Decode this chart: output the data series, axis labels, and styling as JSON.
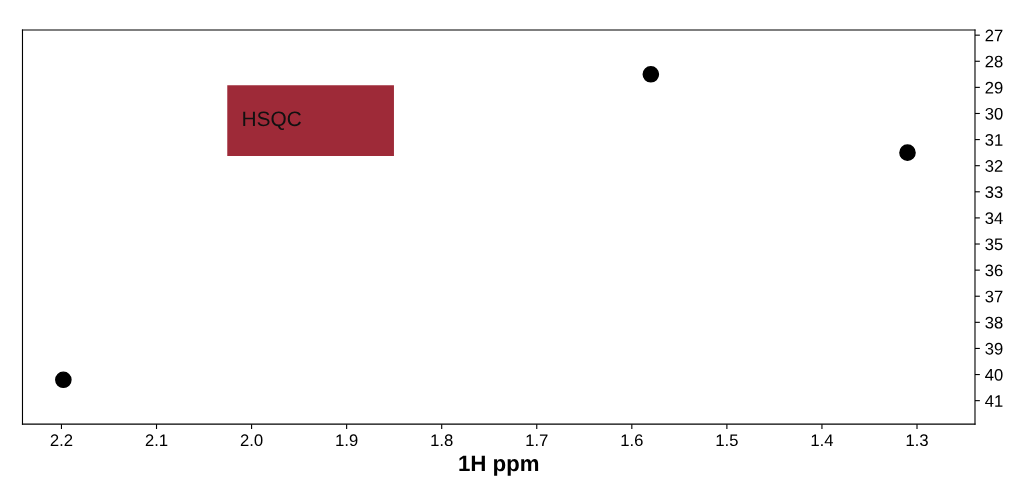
{
  "chart_data": {
    "type": "scatter",
    "xlabel": "1H ppm",
    "x": [
      2.198,
      1.58,
      1.31
    ],
    "values": [
      40.2,
      28.5,
      31.5
    ],
    "color": "#000000",
    "marker": "circle",
    "xlim": [
      2.241,
      1.239
    ],
    "xticks": [
      {
        "value": 2.2,
        "label": "2.2"
      },
      {
        "value": 2.1,
        "label": "2.1"
      },
      {
        "value": 2.0,
        "label": "2.0"
      },
      {
        "value": 1.9,
        "label": "1.9"
      },
      {
        "value": 1.8,
        "label": "1.8"
      },
      {
        "value": 1.7,
        "label": "1.7"
      },
      {
        "value": 1.6,
        "label": "1.6"
      },
      {
        "value": 1.5,
        "label": "1.5"
      },
      {
        "value": 1.4,
        "label": "1.4"
      },
      {
        "value": 1.3,
        "label": "1.3"
      }
    ],
    "ylim": [
      41.9,
      26.8
    ],
    "yticks": [
      27,
      28,
      29,
      30,
      31,
      32,
      33,
      34,
      35,
      36,
      37,
      38,
      39,
      40,
      41
    ],
    "annotations": [
      "HSQC"
    ],
    "grid": false,
    "legend": false
  }
}
